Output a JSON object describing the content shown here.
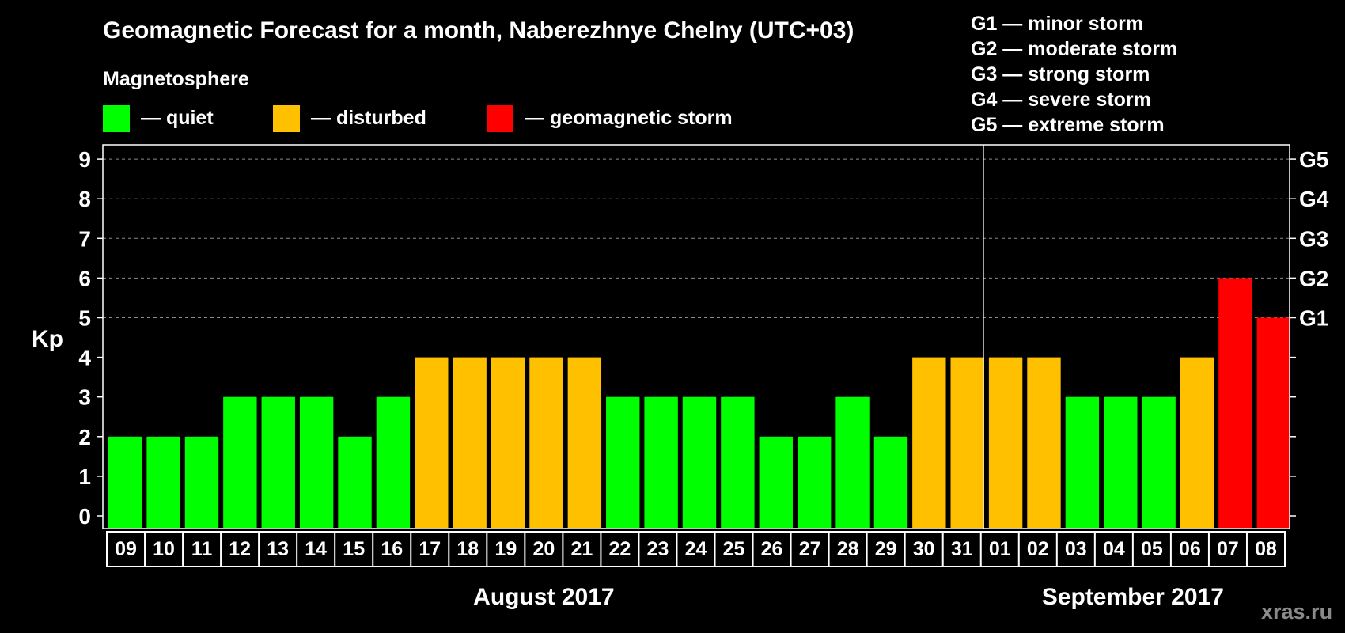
{
  "chart_data": {
    "type": "bar",
    "title": "Geomagnetic Forecast for a month, Naberezhnye Chelny (UTC+03)",
    "subtitle": "Magnetosphere",
    "ylabel": "Kp",
    "ylim": [
      0,
      9
    ],
    "yticks": [
      "0",
      "1",
      "2",
      "3",
      "4",
      "5",
      "6",
      "7",
      "8",
      "9"
    ],
    "gscale": [
      {
        "kp": 5,
        "label": "G1"
      },
      {
        "kp": 6,
        "label": "G2"
      },
      {
        "kp": 7,
        "label": "G3"
      },
      {
        "kp": 8,
        "label": "G4"
      },
      {
        "kp": 9,
        "label": "G5"
      }
    ],
    "legend": [
      {
        "text": "— quiet",
        "color": "#00ff00"
      },
      {
        "text": "— disturbed",
        "color": "#ffc000"
      },
      {
        "text": "— geomagnetic storm",
        "color": "#ff0000"
      }
    ],
    "storm_levels": [
      "G1 — minor storm",
      "G2 — moderate storm",
      "G3 — strong storm",
      "G4 — severe storm",
      "G5 — extreme storm"
    ],
    "categories": [
      "09",
      "10",
      "11",
      "12",
      "13",
      "14",
      "15",
      "16",
      "17",
      "18",
      "19",
      "20",
      "21",
      "22",
      "23",
      "24",
      "25",
      "26",
      "27",
      "28",
      "29",
      "30",
      "31",
      "01",
      "02",
      "03",
      "04",
      "05",
      "06",
      "07",
      "08"
    ],
    "values": [
      2,
      2,
      2,
      3,
      3,
      3,
      2,
      3,
      4,
      4,
      4,
      4,
      4,
      3,
      3,
      3,
      3,
      2,
      2,
      3,
      2,
      4,
      4,
      4,
      4,
      3,
      3,
      3,
      4,
      6,
      5
    ],
    "months": [
      {
        "label": "August 2017",
        "start": 0,
        "count": 23
      },
      {
        "label": "September 2017",
        "start": 23,
        "count": 8
      }
    ],
    "watermark": "xras.ru"
  }
}
